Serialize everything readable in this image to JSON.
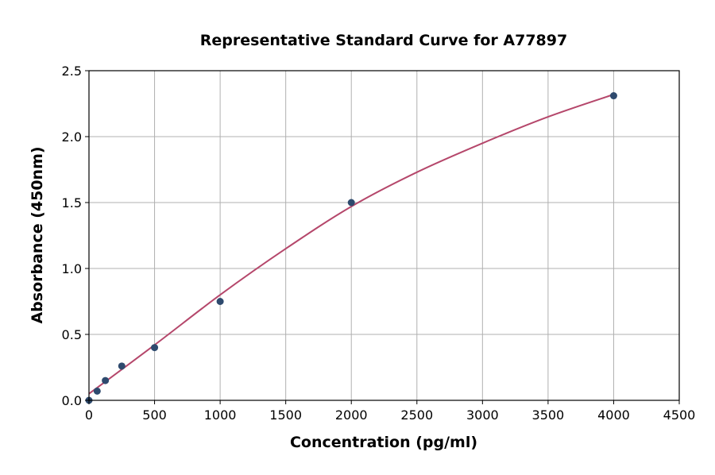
{
  "chart_data": {
    "type": "scatter",
    "title": "Representative Standard Curve for A77897",
    "xlabel": "Concentration (pg/ml)",
    "ylabel": "Absorbance (450nm)",
    "xlim": [
      0,
      4500
    ],
    "ylim": [
      0,
      2.5
    ],
    "xticks": [
      0,
      500,
      1000,
      1500,
      2000,
      2500,
      3000,
      3500,
      4000,
      4500
    ],
    "yticks": [
      "0.0",
      "0.5",
      "1.0",
      "1.5",
      "2.0",
      "2.5"
    ],
    "grid": true,
    "points": {
      "x": [
        0,
        62.5,
        125,
        250,
        500,
        1000,
        2000,
        4000
      ],
      "y": [
        0.0,
        0.07,
        0.15,
        0.26,
        0.4,
        0.75,
        1.5,
        2.31
      ]
    },
    "fit_curve": {
      "x": [
        0,
        500,
        1000,
        1500,
        2000,
        2500,
        3000,
        3500,
        4000
      ],
      "y": [
        0.05,
        0.42,
        0.8,
        1.15,
        1.47,
        1.73,
        1.95,
        2.15,
        2.32
      ]
    },
    "colors": {
      "points": "#2e4a6e",
      "curve": "#b5476b",
      "grid": "#b0b0b0"
    }
  }
}
